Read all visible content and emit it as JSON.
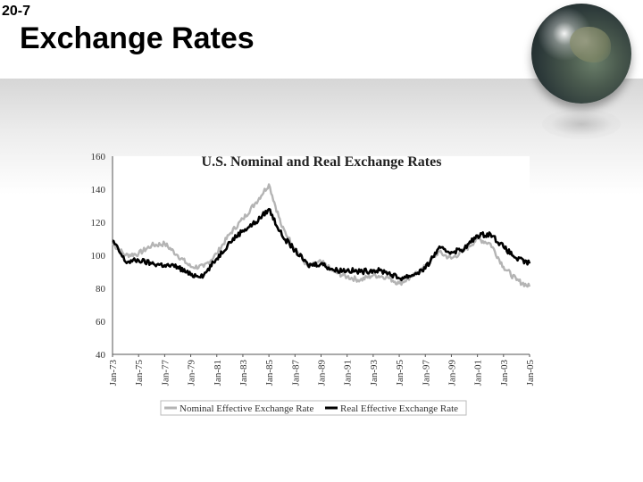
{
  "slide": {
    "number": "20-7",
    "title": "Exchange Rates"
  },
  "colors": {
    "nominal": "#b4b4b4",
    "real": "#000000",
    "background_band": "#e2e2e2"
  },
  "chart_data": {
    "type": "line",
    "title": "U.S. Nominal and Real Exchange Rates",
    "xlabel": "",
    "ylabel": "",
    "ylim": [
      40,
      160
    ],
    "yticks": [
      40,
      60,
      80,
      100,
      120,
      140,
      160
    ],
    "grid": false,
    "legend_position": "bottom",
    "categories": [
      "Jan-73",
      "Jan-75",
      "Jan-77",
      "Jan-79",
      "Jan-81",
      "Jan-83",
      "Jan-85",
      "Jan-87",
      "Jan-89",
      "Jan-91",
      "Jan-93",
      "Jan-95",
      "Jan-97",
      "Jan-99",
      "Jan-01",
      "Jan-03",
      "Jan-05"
    ],
    "x": [
      1973,
      1974,
      1975,
      1976,
      1977,
      1978,
      1979,
      1980,
      1981,
      1982,
      1983,
      1984,
      1985,
      1986,
      1987,
      1988,
      1989,
      1990,
      1991,
      1992,
      1993,
      1994,
      1995,
      1996,
      1997,
      1998,
      1999,
      2000,
      2001,
      2002,
      2003,
      2004,
      2005
    ],
    "series": [
      {
        "name": "Nominal Effective Exchange Rate",
        "color": "#b4b4b4",
        "values": [
          107,
          100,
          101,
          106,
          107,
          100,
          93,
          93,
          101,
          113,
          122,
          132,
          143,
          117,
          104,
          93,
          96,
          90,
          87,
          85,
          88,
          87,
          83,
          87,
          93,
          102,
          98,
          103,
          110,
          107,
          93,
          85,
          81
        ]
      },
      {
        "name": "Real Effective Exchange Rate",
        "color": "#000000",
        "values": [
          109,
          96,
          97,
          95,
          94,
          93,
          88,
          88,
          98,
          108,
          115,
          120,
          128,
          112,
          103,
          94,
          95,
          91,
          91,
          90,
          91,
          90,
          86,
          88,
          92,
          104,
          102,
          104,
          112,
          113,
          105,
          98,
          95
        ]
      }
    ]
  }
}
